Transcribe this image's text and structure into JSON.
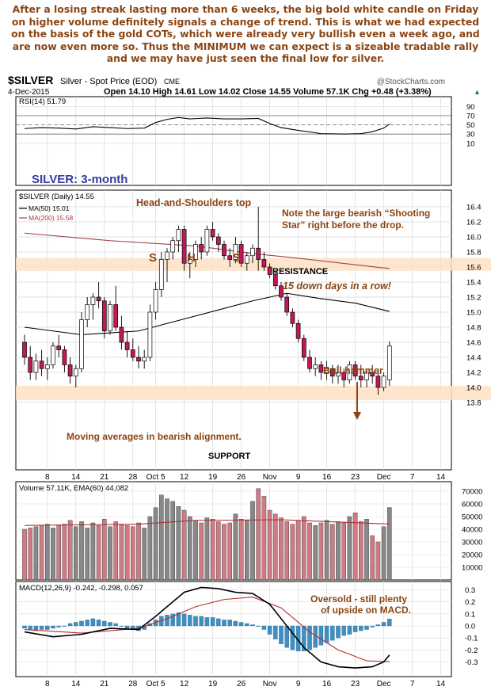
{
  "commentary": [
    "After a losing streak lasting more than 6 weeks, the big bold white candle on Friday",
    "on higher volume definitely signals a change of trend. This is what we had expected",
    "on the basis of the gold COTs, which were already very bullish even a week ago, and",
    "are now even more so. Thus the MINIMUM we can expect is a sizeable tradable rally",
    "and we may have just seen the final low for silver."
  ],
  "header": {
    "symbol": "$SILVER",
    "name": "Silver - Spot Price (EOD)",
    "exchange": "CME",
    "date": "4-Dec-2015",
    "watermark": "@StockCharts.com",
    "ohlc": "Open 14.10  High 14.61  Low 14.02  Close 14.55  Volume 57.1K  Chg +0.48 (+3.38%)",
    "change_arrow": "▲"
  },
  "colors": {
    "up": "#ffffff",
    "down": "#c2185b",
    "grid": "#d9d9d9",
    "band": "#fde2c4",
    "ma200": "#a04040",
    "ma50": "#000000",
    "vol_up": "#888888",
    "vol_down": "#d07a84",
    "macd_hist": "#3f8fc0",
    "macd_signal": "#b03030",
    "annot": "#8b4513",
    "title_blue": "#3a3aa0"
  },
  "chart_data": [
    {
      "type": "candlestick",
      "title": "$SILVER (Daily) 14.55",
      "ylim": [
        13.75,
        16.45
      ],
      "y_ticks": [
        13.8,
        14.0,
        14.2,
        14.4,
        14.6,
        14.8,
        15.0,
        15.2,
        15.4,
        15.6,
        15.8,
        16.0,
        16.2,
        16.4
      ],
      "legend": [
        {
          "name": "MA(50) 15.01",
          "color": "#000000"
        },
        {
          "name": "MA(200) 15.58",
          "color": "#a04040"
        }
      ],
      "x_ticks": [
        {
          "i": 4,
          "label": "8"
        },
        {
          "i": 9,
          "label": "14"
        },
        {
          "i": 14,
          "label": "21"
        },
        {
          "i": 19,
          "label": "28"
        },
        {
          "i": 23,
          "label": "Oct 5"
        },
        {
          "i": 28,
          "label": "12"
        },
        {
          "i": 33,
          "label": "19"
        },
        {
          "i": 38,
          "label": "26"
        },
        {
          "i": 43,
          "label": "Nov"
        },
        {
          "i": 48,
          "label": "9"
        },
        {
          "i": 53,
          "label": "16"
        },
        {
          "i": 58,
          "label": "23"
        },
        {
          "i": 63,
          "label": "Dec"
        },
        {
          "i": 68,
          "label": "7"
        },
        {
          "i": 73,
          "label": "14"
        }
      ],
      "candles": [
        [
          14.6,
          14.7,
          14.3,
          14.4
        ],
        [
          14.4,
          14.55,
          14.1,
          14.2
        ],
        [
          14.2,
          14.45,
          14.1,
          14.35
        ],
        [
          14.35,
          14.5,
          14.15,
          14.25
        ],
        [
          14.25,
          14.4,
          14.1,
          14.3
        ],
        [
          14.3,
          14.6,
          14.25,
          14.55
        ],
        [
          14.55,
          14.7,
          14.4,
          14.5
        ],
        [
          14.5,
          14.55,
          14.2,
          14.3
        ],
        [
          14.3,
          14.4,
          14.05,
          14.15
        ],
        [
          14.15,
          14.3,
          14.0,
          14.25
        ],
        [
          14.25,
          15.0,
          14.2,
          14.9
        ],
        [
          14.9,
          15.2,
          14.8,
          15.1
        ],
        [
          15.1,
          15.25,
          14.9,
          15.2
        ],
        [
          15.2,
          15.4,
          15.05,
          15.15
        ],
        [
          15.15,
          15.2,
          14.65,
          14.75
        ],
        [
          14.75,
          15.15,
          14.7,
          15.1
        ],
        [
          15.1,
          15.35,
          14.75,
          14.8
        ],
        [
          14.8,
          14.95,
          14.5,
          14.6
        ],
        [
          14.6,
          14.75,
          14.4,
          14.5
        ],
        [
          14.5,
          14.65,
          14.35,
          14.4
        ],
        [
          14.4,
          14.55,
          14.25,
          14.35
        ],
        [
          14.35,
          14.5,
          14.25,
          14.4
        ],
        [
          14.4,
          15.1,
          14.35,
          15.0
        ],
        [
          15.0,
          15.4,
          14.9,
          15.3
        ],
        [
          15.3,
          15.8,
          15.2,
          15.7
        ],
        [
          15.7,
          15.85,
          15.4,
          15.8
        ],
        [
          15.8,
          16.0,
          15.7,
          15.95
        ],
        [
          15.95,
          16.15,
          15.8,
          16.1
        ],
        [
          16.1,
          16.15,
          15.55,
          15.65
        ],
        [
          15.65,
          15.8,
          15.45,
          15.7
        ],
        [
          15.7,
          15.95,
          15.6,
          15.9
        ],
        [
          15.9,
          16.0,
          15.7,
          15.8
        ],
        [
          15.8,
          16.15,
          15.75,
          16.1
        ],
        [
          16.1,
          16.2,
          15.95,
          16.0
        ],
        [
          16.0,
          16.05,
          15.8,
          15.9
        ],
        [
          15.9,
          15.95,
          15.7,
          15.75
        ],
        [
          15.75,
          15.85,
          15.6,
          15.7
        ],
        [
          15.7,
          16.0,
          15.65,
          15.9
        ],
        [
          15.9,
          15.95,
          15.6,
          15.65
        ],
        [
          15.65,
          15.8,
          15.55,
          15.75
        ],
        [
          15.75,
          15.9,
          15.65,
          15.85
        ],
        [
          15.85,
          16.4,
          15.55,
          15.7
        ],
        [
          15.7,
          15.8,
          15.55,
          15.6
        ],
        [
          15.6,
          15.65,
          15.45,
          15.5
        ],
        [
          15.5,
          15.55,
          15.3,
          15.35
        ],
        [
          15.35,
          15.4,
          15.15,
          15.2
        ],
        [
          15.2,
          15.25,
          14.95,
          15.0
        ],
        [
          15.0,
          15.05,
          14.8,
          14.85
        ],
        [
          14.85,
          14.9,
          14.6,
          14.65
        ],
        [
          14.65,
          14.7,
          14.35,
          14.4
        ],
        [
          14.4,
          14.5,
          14.2,
          14.25
        ],
        [
          14.25,
          14.4,
          14.15,
          14.3
        ],
        [
          14.3,
          14.35,
          14.1,
          14.2
        ],
        [
          14.2,
          14.35,
          14.1,
          14.25
        ],
        [
          14.25,
          14.3,
          14.05,
          14.15
        ],
        [
          14.15,
          14.3,
          14.05,
          14.2
        ],
        [
          14.2,
          14.25,
          14.0,
          14.1
        ],
        [
          14.1,
          14.35,
          14.05,
          14.3
        ],
        [
          14.3,
          14.35,
          14.1,
          14.15
        ],
        [
          14.15,
          14.3,
          14.0,
          14.1
        ],
        [
          14.1,
          14.25,
          14.0,
          14.2
        ],
        [
          14.2,
          14.3,
          14.05,
          14.15
        ],
        [
          14.15,
          14.25,
          13.9,
          14.0
        ],
        [
          14.0,
          14.2,
          13.95,
          14.15
        ],
        [
          14.1,
          14.61,
          14.02,
          14.55
        ]
      ],
      "ma50": [
        [
          0,
          14.8
        ],
        [
          10,
          14.7
        ],
        [
          20,
          14.75
        ],
        [
          30,
          14.95
        ],
        [
          40,
          15.15
        ],
        [
          46,
          15.25
        ],
        [
          52,
          15.18
        ],
        [
          58,
          15.12
        ],
        [
          64,
          15.01
        ]
      ],
      "ma200": [
        [
          0,
          16.05
        ],
        [
          15,
          15.95
        ],
        [
          30,
          15.88
        ],
        [
          40,
          15.78
        ],
        [
          50,
          15.7
        ],
        [
          58,
          15.63
        ],
        [
          64,
          15.58
        ]
      ],
      "bands": [
        {
          "label": "RESISTANCE",
          "low": 15.55,
          "high": 15.72
        },
        {
          "label": "SUPPORT",
          "low": 13.83,
          "high": 14.02
        }
      ],
      "annotations": [
        "Head-and-Shoulders top",
        "Note the large bearish “Shooting",
        "Star” right before the drop.",
        "15 down days in a row!",
        "Bull hammer",
        "Moving averages in bearish alignment.",
        "SILVER: 3-month"
      ],
      "pattern_letters": [
        "S",
        "H",
        "S"
      ]
    },
    {
      "type": "line",
      "title": "RSI(14) 51.79",
      "ylim": [
        5,
        95
      ],
      "y_ticks": [
        10,
        30,
        50,
        70,
        90
      ],
      "levels": [
        30,
        50,
        70
      ],
      "values": [
        [
          0,
          42
        ],
        [
          3,
          44
        ],
        [
          6,
          43
        ],
        [
          9,
          41
        ],
        [
          12,
          46
        ],
        [
          15,
          44
        ],
        [
          18,
          42
        ],
        [
          21,
          43
        ],
        [
          23,
          55
        ],
        [
          25,
          62
        ],
        [
          27,
          66
        ],
        [
          29,
          63
        ],
        [
          32,
          65
        ],
        [
          35,
          63
        ],
        [
          38,
          63
        ],
        [
          41,
          64
        ],
        [
          43,
          53
        ],
        [
          45,
          44
        ],
        [
          48,
          38
        ],
        [
          52,
          31
        ],
        [
          56,
          30
        ],
        [
          59,
          31
        ],
        [
          61,
          35
        ],
        [
          63,
          43
        ],
        [
          64,
          51.79
        ]
      ]
    },
    {
      "type": "bar",
      "title": "Volume 57.11K, EMA(60) 44,082",
      "ylim": [
        0,
        75000
      ],
      "y_ticks": [
        10000,
        20000,
        30000,
        40000,
        50000,
        60000,
        70000
      ],
      "values": [
        40000,
        41000,
        42000,
        43000,
        44000,
        41000,
        43000,
        44000,
        47000,
        42000,
        46000,
        41000,
        45000,
        43000,
        48000,
        42000,
        46000,
        44000,
        43000,
        42000,
        45000,
        41000,
        50000,
        57000,
        67000,
        64000,
        62000,
        58000,
        55000,
        50000,
        47000,
        45000,
        49000,
        48000,
        46000,
        44000,
        45000,
        52000,
        48000,
        47000,
        62000,
        72000,
        66000,
        55000,
        52000,
        49000,
        46000,
        44000,
        47000,
        50000,
        45000,
        43000,
        45000,
        47000,
        44000,
        46000,
        45000,
        50000,
        53000,
        46000,
        48000,
        35000,
        30000,
        42000,
        57110
      ],
      "ema": [
        [
          0,
          43000
        ],
        [
          20,
          44000
        ],
        [
          30,
          47000
        ],
        [
          45,
          47500
        ],
        [
          64,
          44082
        ]
      ]
    },
    {
      "type": "bar",
      "title": "MACD(12,26,9) -0.242, -0.298, 0.057",
      "ylim": [
        -0.36,
        0.36
      ],
      "y_ticks": [
        -0.3,
        -0.2,
        -0.1,
        0.0,
        0.1,
        0.2,
        0.3
      ],
      "macd": [
        [
          0,
          -0.05
        ],
        [
          5,
          -0.09
        ],
        [
          10,
          -0.07
        ],
        [
          15,
          -0.02
        ],
        [
          20,
          -0.03
        ],
        [
          23,
          0.08
        ],
        [
          26,
          0.2
        ],
        [
          28,
          0.28
        ],
        [
          31,
          0.32
        ],
        [
          34,
          0.31
        ],
        [
          37,
          0.28
        ],
        [
          40,
          0.27
        ],
        [
          43,
          0.18
        ],
        [
          46,
          0.0
        ],
        [
          49,
          -0.18
        ],
        [
          52,
          -0.3
        ],
        [
          55,
          -0.34
        ],
        [
          58,
          -0.35
        ],
        [
          61,
          -0.34
        ],
        [
          63,
          -0.3
        ],
        [
          64,
          -0.242
        ]
      ],
      "signal": [
        [
          0,
          -0.03
        ],
        [
          10,
          -0.06
        ],
        [
          20,
          -0.02
        ],
        [
          25,
          0.06
        ],
        [
          30,
          0.16
        ],
        [
          35,
          0.22
        ],
        [
          40,
          0.24
        ],
        [
          45,
          0.15
        ],
        [
          50,
          -0.05
        ],
        [
          55,
          -0.2
        ],
        [
          60,
          -0.29
        ],
        [
          64,
          -0.298
        ]
      ],
      "histogram": [
        -0.02,
        -0.03,
        -0.04,
        -0.03,
        -0.03,
        -0.02,
        -0.01,
        0.0,
        0.02,
        0.03,
        0.04,
        0.05,
        0.06,
        0.05,
        0.04,
        0.03,
        0.02,
        0.0,
        -0.02,
        -0.03,
        -0.04,
        -0.03,
        0.02,
        0.05,
        0.08,
        0.09,
        0.1,
        0.11,
        0.1,
        0.09,
        0.08,
        0.08,
        0.07,
        0.07,
        0.06,
        0.05,
        0.05,
        0.04,
        0.03,
        0.02,
        0.01,
        0.0,
        -0.03,
        -0.07,
        -0.11,
        -0.15,
        -0.18,
        -0.2,
        -0.21,
        -0.21,
        -0.2,
        -0.18,
        -0.16,
        -0.14,
        -0.12,
        -0.1,
        -0.08,
        -0.07,
        -0.05,
        -0.04,
        -0.03,
        -0.01,
        0.01,
        0.03,
        0.057
      ],
      "annotations": [
        "Oversold - still plenty",
        "of upside on MACD."
      ]
    }
  ]
}
